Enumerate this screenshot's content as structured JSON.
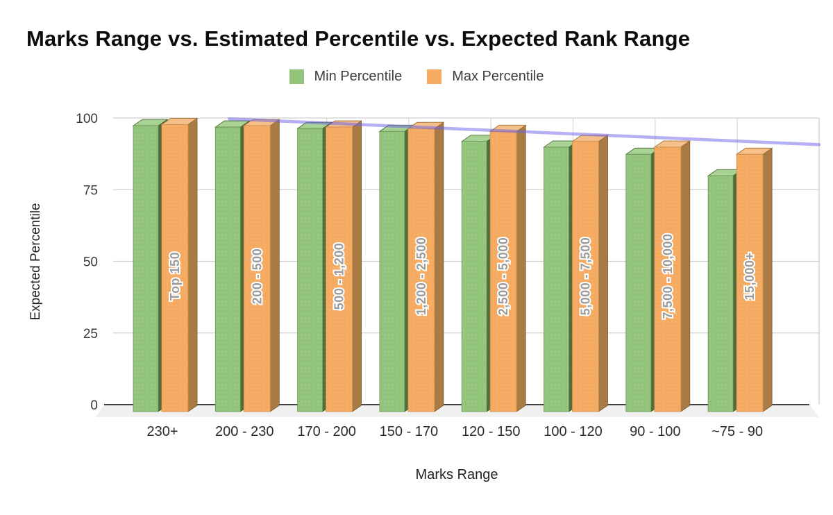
{
  "title": "Marks Range vs. Estimated Percentile vs. Expected Rank Range",
  "background_color": "#ffffff",
  "legend": {
    "items": [
      {
        "label": "Min Percentile",
        "color": "#92c47c"
      },
      {
        "label": "Max Percentile",
        "color": "#f5aa61"
      }
    ]
  },
  "chart_data": {
    "type": "bar",
    "projection": "3d-columns",
    "title": "Marks Range vs. Estimated Percentile vs. Expected Rank Range",
    "xlabel": "Marks Range",
    "ylabel": "Expected Percentile",
    "categories": [
      "230+",
      "200 - 230",
      "170 - 200",
      "150 - 170",
      "120 - 150",
      "100 - 120",
      "90 - 100",
      "~75 - 90"
    ],
    "series": [
      {
        "name": "Min Percentile",
        "color": "#92c47c",
        "top_color": "#a9d295",
        "side_color": "#516e3a",
        "values": [
          99.5,
          99,
          98.5,
          97.5,
          94,
          92,
          89.5,
          82
        ]
      },
      {
        "name": "Max Percentile",
        "color": "#f5aa61",
        "top_color": "#f7bf8a",
        "side_color": "#a87c44",
        "values": [
          99.9,
          99.5,
          99,
          98.5,
          97.5,
          94,
          92,
          89.5
        ]
      }
    ],
    "bar_labels": [
      "Top 150",
      "200 - 500",
      "500 - 1,200",
      "1,200 - 2,500",
      "2,500 - 5,000",
      "5,000 - 7,500",
      "7,500 - 10,000",
      "15,000+"
    ],
    "bar_label_color": "#9b9b9b",
    "yticks": [
      0,
      25,
      50,
      75,
      100
    ],
    "ylim": [
      0,
      100
    ],
    "grid": true,
    "gridline_color": "#cfcfcf",
    "axis_line_color": "#424242",
    "legend_position": "top",
    "trend_line": {
      "color": "#6a61e8",
      "opacity": 0.5,
      "start_value": 99.7,
      "end_value": 90.7,
      "starts_at_frac": 0.175,
      "ends_at_frac": 1.0,
      "clipped_at_value": 100
    }
  }
}
